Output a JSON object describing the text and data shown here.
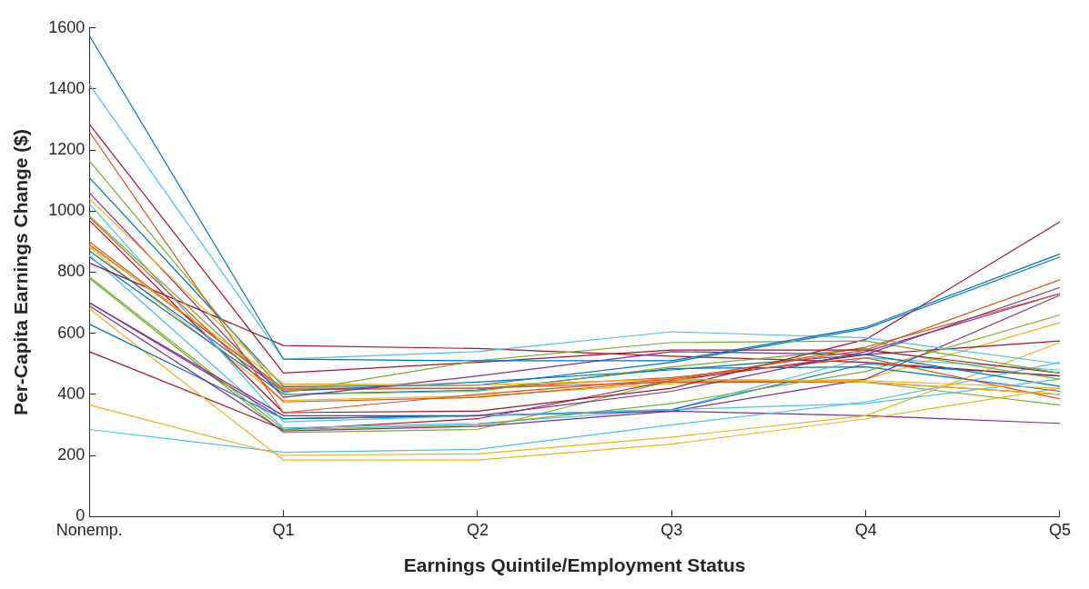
{
  "chart_data": {
    "type": "line",
    "xlabel": "Earnings Quintile/Employment Status",
    "ylabel": "Per-Capita Earnings Change ($)",
    "categories": [
      "Nonemp.",
      "Q1",
      "Q2",
      "Q3",
      "Q4",
      "Q5"
    ],
    "ylim": [
      0,
      1600
    ],
    "yticks": [
      0,
      200,
      400,
      600,
      800,
      1000,
      1200,
      1400,
      1600
    ],
    "grid": false,
    "legend": false,
    "marker": "none",
    "line_style": "solid",
    "series": [
      {
        "color": "#0072bd",
        "values": [
          1575,
          515,
          510,
          510,
          620,
          860
        ]
      },
      {
        "color": "#d95319",
        "values": [
          1260,
          340,
          400,
          450,
          545,
          775
        ]
      },
      {
        "color": "#edb120",
        "values": [
          1040,
          430,
          430,
          450,
          445,
          420
        ]
      },
      {
        "color": "#7e2f8e",
        "values": [
          1060,
          390,
          460,
          540,
          530,
          750
        ]
      },
      {
        "color": "#77ac30",
        "values": [
          1165,
          405,
          510,
          570,
          575,
          470
        ]
      },
      {
        "color": "#4dbeee",
        "values": [
          1415,
          515,
          540,
          605,
          585,
          500
        ]
      },
      {
        "color": "#a2142f",
        "values": [
          1285,
          470,
          505,
          545,
          545,
          470
        ]
      },
      {
        "color": "#0072bd",
        "values": [
          1110,
          425,
          430,
          505,
          615,
          850
        ]
      },
      {
        "color": "#d95319",
        "values": [
          980,
          375,
          390,
          445,
          555,
          730
        ]
      },
      {
        "color": "#edb120",
        "values": [
          885,
          435,
          430,
          450,
          440,
          400
        ]
      },
      {
        "color": "#7e2f8e",
        "values": [
          700,
          330,
          330,
          410,
          540,
          730
        ]
      },
      {
        "color": "#77ac30",
        "values": [
          985,
          400,
          410,
          490,
          550,
          450
        ]
      },
      {
        "color": "#4dbeee",
        "values": [
          1025,
          310,
          330,
          350,
          370,
          450
        ]
      },
      {
        "color": "#a2142f",
        "values": [
          970,
          340,
          345,
          420,
          580,
          965
        ]
      },
      {
        "color": "#0072bd",
        "values": [
          870,
          410,
          440,
          480,
          530,
          426
        ]
      },
      {
        "color": "#d95319",
        "values": [
          900,
          415,
          420,
          455,
          520,
          385
        ]
      },
      {
        "color": "#edb120",
        "values": [
          365,
          200,
          205,
          260,
          330,
          570
        ]
      },
      {
        "color": "#7e2f8e",
        "values": [
          690,
          280,
          295,
          345,
          450,
          725
        ]
      },
      {
        "color": "#77ac30",
        "values": [
          785,
          285,
          300,
          370,
          475,
          660
        ]
      },
      {
        "color": "#4dbeee",
        "values": [
          285,
          210,
          220,
          300,
          375,
          505
        ]
      },
      {
        "color": "#a2142f",
        "values": [
          830,
          560,
          550,
          525,
          505,
          460
        ]
      },
      {
        "color": "#0072bd",
        "values": [
          630,
          320,
          330,
          350,
          500,
          460
        ]
      },
      {
        "color": "#d95319",
        "values": [
          890,
          420,
          420,
          440,
          440,
          400
        ]
      },
      {
        "color": "#edb120",
        "values": [
          680,
          185,
          185,
          237,
          320,
          420
        ]
      },
      {
        "color": "#7e2f8e",
        "values": [
          700,
          320,
          330,
          345,
          330,
          305
        ]
      },
      {
        "color": "#77ac30",
        "values": [
          780,
          275,
          285,
          445,
          440,
          365
        ]
      },
      {
        "color": "#4dbeee",
        "values": [
          855,
          290,
          305,
          350,
          520,
          480
        ]
      },
      {
        "color": "#a2142f",
        "values": [
          540,
          285,
          320,
          445,
          530,
          575
        ]
      },
      {
        "color": "#0072bd",
        "values": [
          850,
          400,
          414,
          485,
          490,
          410
        ]
      },
      {
        "color": "#edb120",
        "values": [
          880,
          380,
          395,
          435,
          450,
          635
        ]
      }
    ]
  }
}
